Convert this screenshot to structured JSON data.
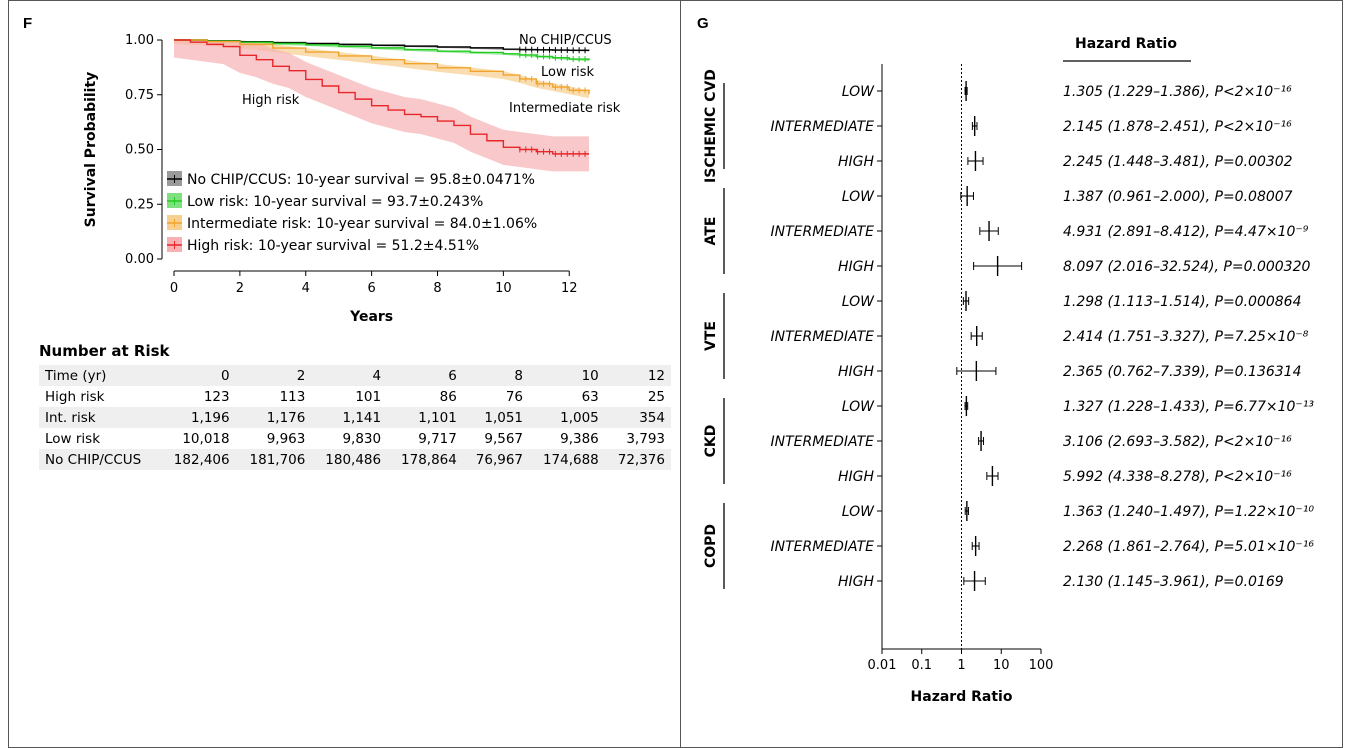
{
  "panel_f": {
    "label": "F",
    "number_at_risk": {
      "title": "Number at Risk",
      "header": [
        "Time (yr)",
        "0",
        "2",
        "4",
        "6",
        "8",
        "10",
        "12"
      ],
      "rows": [
        [
          "High risk",
          "123",
          "113",
          "101",
          "86",
          "76",
          "63",
          "25"
        ],
        [
          "Int. risk",
          "1,196",
          "1,176",
          "1,141",
          "1,101",
          "1,051",
          "1,005",
          "354"
        ],
        [
          "Low risk",
          "10,018",
          "9,963",
          "9,830",
          "9,717",
          "9,567",
          "9,386",
          "3,793"
        ],
        [
          "No CHIP/CCUS",
          "182,406",
          "181,706",
          "180,486",
          "178,864",
          "76,967",
          "174,688",
          "72,376"
        ]
      ]
    }
  },
  "panel_g": {
    "label": "G",
    "header": "Hazard Ratio"
  },
  "chart_data": [
    {
      "type": "line",
      "subtype": "kaplan-meier",
      "xlabel": "Years",
      "ylabel": "Survival Probability",
      "xlim": [
        0,
        12.6
      ],
      "ylim": [
        0,
        1
      ],
      "xticks": [
        0,
        2,
        4,
        6,
        8,
        10,
        12
      ],
      "yticks": [
        0,
        0.25,
        0.5,
        0.75,
        1.0
      ],
      "ytick_labels": [
        "0.00",
        "0.25",
        "0.50",
        "0.75",
        "1.00"
      ],
      "grid": false,
      "legend_position": "lower-left",
      "series": [
        {
          "name": "No CHIP/CCUS",
          "legend": "No CHIP/CCUS: 10-year survival = 95.8±0.0471%",
          "label": "No CHIP/CCUS",
          "color": "#000000",
          "band": "#9a9a9a",
          "x": [
            0,
            1,
            2,
            3,
            4,
            5,
            6,
            7,
            8,
            9,
            10,
            10.5,
            11,
            11.5,
            12,
            12.6
          ],
          "y": [
            1.0,
            0.996,
            0.992,
            0.988,
            0.984,
            0.98,
            0.976,
            0.972,
            0.968,
            0.964,
            0.958,
            0.956,
            0.955,
            0.954,
            0.953,
            0.952
          ],
          "band_halfwidth": 0.004
        },
        {
          "name": "Low risk",
          "legend": "Low risk: 10-year survival = 93.7±0.243%",
          "label": "Low risk",
          "color": "#22cc22",
          "band": "#7fe07f",
          "x": [
            0,
            1,
            2,
            3,
            4,
            5,
            6,
            7,
            8,
            9,
            10,
            10.5,
            11,
            11.5,
            12,
            12.6
          ],
          "y": [
            1.0,
            0.995,
            0.99,
            0.984,
            0.978,
            0.971,
            0.964,
            0.956,
            0.949,
            0.943,
            0.937,
            0.932,
            0.925,
            0.919,
            0.913,
            0.908
          ],
          "band_halfwidth": 0.005
        },
        {
          "name": "Intermediate risk",
          "legend": "Intermediate risk: 10-year survival = 84.0±1.06%",
          "label": "Intermediate risk",
          "color": "#f2a32a",
          "band": "#f7cf8e",
          "x": [
            0,
            1,
            2,
            3,
            4,
            5,
            6,
            7,
            8,
            9,
            10,
            10.5,
            11,
            11.5,
            12,
            12.6
          ],
          "y": [
            1.0,
            0.993,
            0.98,
            0.963,
            0.945,
            0.927,
            0.91,
            0.892,
            0.873,
            0.857,
            0.84,
            0.822,
            0.8,
            0.785,
            0.77,
            0.752
          ],
          "band_halfwidth": 0.018
        },
        {
          "name": "High risk",
          "legend": "High risk: 10-year survival = 51.2±4.51%",
          "label": "High risk",
          "color": "#e8262a",
          "band": "#f7b0b3",
          "x": [
            0,
            0.5,
            1,
            1.5,
            2,
            2.5,
            3,
            3.5,
            4,
            4.5,
            5,
            5.5,
            6,
            6.5,
            7,
            7.5,
            8,
            8.5,
            9,
            9.5,
            10,
            10.5,
            11,
            11.5,
            12,
            12.6
          ],
          "y": [
            1.0,
            0.99,
            0.98,
            0.97,
            0.93,
            0.91,
            0.88,
            0.86,
            0.82,
            0.79,
            0.76,
            0.73,
            0.7,
            0.68,
            0.66,
            0.65,
            0.63,
            0.61,
            0.57,
            0.54,
            0.51,
            0.5,
            0.49,
            0.48,
            0.48,
            0.48
          ],
          "band_halfwidth": 0.08
        }
      ]
    },
    {
      "type": "scatter",
      "subtype": "forest-plot",
      "xlabel": "Hazard Ratio",
      "xscale": "log",
      "xlim": [
        0.01,
        100
      ],
      "xticks": [
        0.01,
        0.1,
        1,
        10,
        100
      ],
      "xtick_labels": [
        "0.01",
        "0.1",
        "1",
        "10",
        "100"
      ],
      "reference_line": 1,
      "groups": [
        {
          "name": "ISCHEMIC CVD",
          "rows": [
            {
              "level": "LOW",
              "hr": 1.305,
              "lo": 1.229,
              "hi": 1.386,
              "text": "1.305 (1.229–1.386), P<2×10⁻¹⁶"
            },
            {
              "level": "INTERMEDIATE",
              "hr": 2.145,
              "lo": 1.878,
              "hi": 2.451,
              "text": "2.145 (1.878–2.451), P<2×10⁻¹⁶"
            },
            {
              "level": "HIGH",
              "hr": 2.245,
              "lo": 1.448,
              "hi": 3.481,
              "text": "2.245 (1.448–3.481), P=0.00302"
            }
          ]
        },
        {
          "name": "ATE",
          "rows": [
            {
              "level": "LOW",
              "hr": 1.387,
              "lo": 0.961,
              "hi": 2.0,
              "text": "1.387 (0.961–2.000), P=0.08007"
            },
            {
              "level": "INTERMEDIATE",
              "hr": 4.931,
              "lo": 2.891,
              "hi": 8.412,
              "text": "4.931 (2.891–8.412), P=4.47×10⁻⁹"
            },
            {
              "level": "HIGH",
              "hr": 8.097,
              "lo": 2.016,
              "hi": 32.524,
              "text": "8.097 (2.016–32.524), P=0.000320"
            }
          ]
        },
        {
          "name": "VTE",
          "rows": [
            {
              "level": "LOW",
              "hr": 1.298,
              "lo": 1.113,
              "hi": 1.514,
              "text": "1.298 (1.113–1.514), P=0.000864"
            },
            {
              "level": "INTERMEDIATE",
              "hr": 2.414,
              "lo": 1.751,
              "hi": 3.327,
              "text": "2.414 (1.751–3.327), P=7.25×10⁻⁸"
            },
            {
              "level": "HIGH",
              "hr": 2.365,
              "lo": 0.762,
              "hi": 7.339,
              "text": "2.365 (0.762–7.339), P=0.136314"
            }
          ]
        },
        {
          "name": "CKD",
          "rows": [
            {
              "level": "LOW",
              "hr": 1.327,
              "lo": 1.228,
              "hi": 1.433,
              "text": "1.327 (1.228–1.433), P=6.77×10⁻¹³"
            },
            {
              "level": "INTERMEDIATE",
              "hr": 3.106,
              "lo": 2.693,
              "hi": 3.582,
              "text": "3.106 (2.693–3.582), P<2×10⁻¹⁶"
            },
            {
              "level": "HIGH",
              "hr": 5.992,
              "lo": 4.338,
              "hi": 8.278,
              "text": "5.992 (4.338–8.278), P<2×10⁻¹⁶"
            }
          ]
        },
        {
          "name": "COPD",
          "rows": [
            {
              "level": "LOW",
              "hr": 1.363,
              "lo": 1.24,
              "hi": 1.497,
              "text": "1.363 (1.240–1.497), P=1.22×10⁻¹⁰"
            },
            {
              "level": "INTERMEDIATE",
              "hr": 2.268,
              "lo": 1.861,
              "hi": 2.764,
              "text": "2.268 (1.861–2.764), P=5.01×10⁻¹⁶"
            },
            {
              "level": "HIGH",
              "hr": 2.13,
              "lo": 1.145,
              "hi": 3.961,
              "text": "2.130 (1.145–3.961), P=0.0169"
            }
          ]
        }
      ]
    }
  ]
}
